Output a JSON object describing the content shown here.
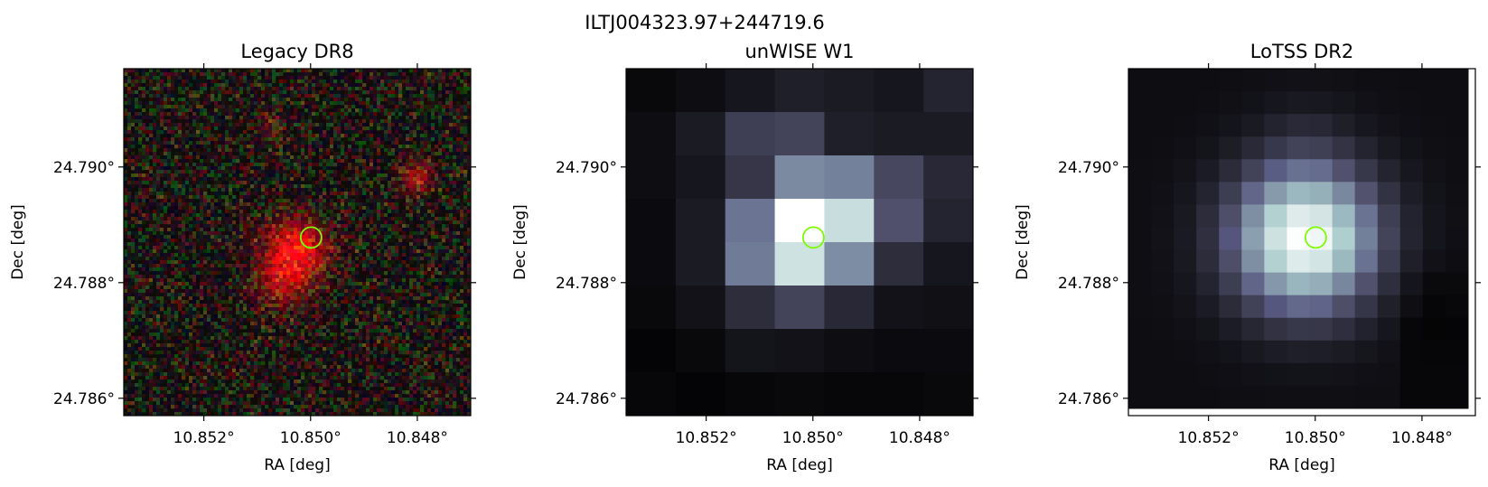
{
  "figure": {
    "suptitle": "ILTJ004323.97+244719.6"
  },
  "colors": {
    "marker": "#7cfc00",
    "background": "#ffffff",
    "axes": "#000000"
  },
  "marker": {
    "shape": "circle",
    "ra": 10.84999,
    "dec": 24.78878
  },
  "chart_data": [
    {
      "type": "heatmap",
      "title": "Legacy DR8",
      "image_kind": "rgb-optical-noise",
      "xlabel": "RA [deg]",
      "ylabel": "Dec [deg]",
      "xlim": [
        10.8535,
        10.847
      ],
      "ylim": [
        24.7857,
        24.7917
      ],
      "xticks": [
        10.852,
        10.85,
        10.848
      ],
      "xticklabels": [
        "10.852°",
        "10.850°",
        "10.848°"
      ],
      "yticks": [
        24.786,
        24.788,
        24.79
      ],
      "yticklabels": [
        "24.786°",
        "24.788°",
        "24.790°"
      ],
      "grid": false
    },
    {
      "type": "heatmap",
      "title": "unWISE W1",
      "image_kind": "bone-grayscale",
      "xlabel": "RA [deg]",
      "ylabel": "Dec [deg]",
      "xlim": [
        10.8535,
        10.847
      ],
      "ylim": [
        24.7857,
        24.7917
      ],
      "xticks": [
        10.852,
        10.85,
        10.848
      ],
      "xticklabels": [
        "10.852°",
        "10.850°",
        "10.848°"
      ],
      "yticks": [
        24.786,
        24.788,
        24.79
      ],
      "yticklabels": [
        "24.786°",
        "24.788°",
        "24.790°"
      ],
      "grid": false,
      "values": [
        [
          0.04,
          0.06,
          0.1,
          0.14,
          0.12,
          0.1,
          0.16
        ],
        [
          0.06,
          0.12,
          0.28,
          0.3,
          0.14,
          0.12,
          0.12
        ],
        [
          0.06,
          0.1,
          0.24,
          0.55,
          0.52,
          0.32,
          0.18
        ],
        [
          0.05,
          0.12,
          0.48,
          1.0,
          0.84,
          0.36,
          0.16
        ],
        [
          0.05,
          0.12,
          0.5,
          0.86,
          0.56,
          0.2,
          0.1
        ],
        [
          0.04,
          0.08,
          0.2,
          0.3,
          0.18,
          0.08,
          0.07
        ],
        [
          0.02,
          0.04,
          0.09,
          0.08,
          0.06,
          0.05,
          0.05
        ],
        [
          0.03,
          0.02,
          0.03,
          0.04,
          0.03,
          0.03,
          0.04
        ]
      ]
    },
    {
      "type": "heatmap",
      "title": "LoTSS DR2",
      "image_kind": "bone-grayscale",
      "xlabel": "RA [deg]",
      "ylabel": "Dec [deg]",
      "xlim": [
        10.8535,
        10.847
      ],
      "ylim": [
        24.7857,
        24.7917
      ],
      "xticks": [
        10.852,
        10.85,
        10.848
      ],
      "xticklabels": [
        "10.852°",
        "10.850°",
        "10.848°"
      ],
      "yticks": [
        24.786,
        24.788,
        24.79
      ],
      "yticklabels": [
        "24.786°",
        "24.788°",
        "24.790°"
      ],
      "grid": false
    }
  ]
}
